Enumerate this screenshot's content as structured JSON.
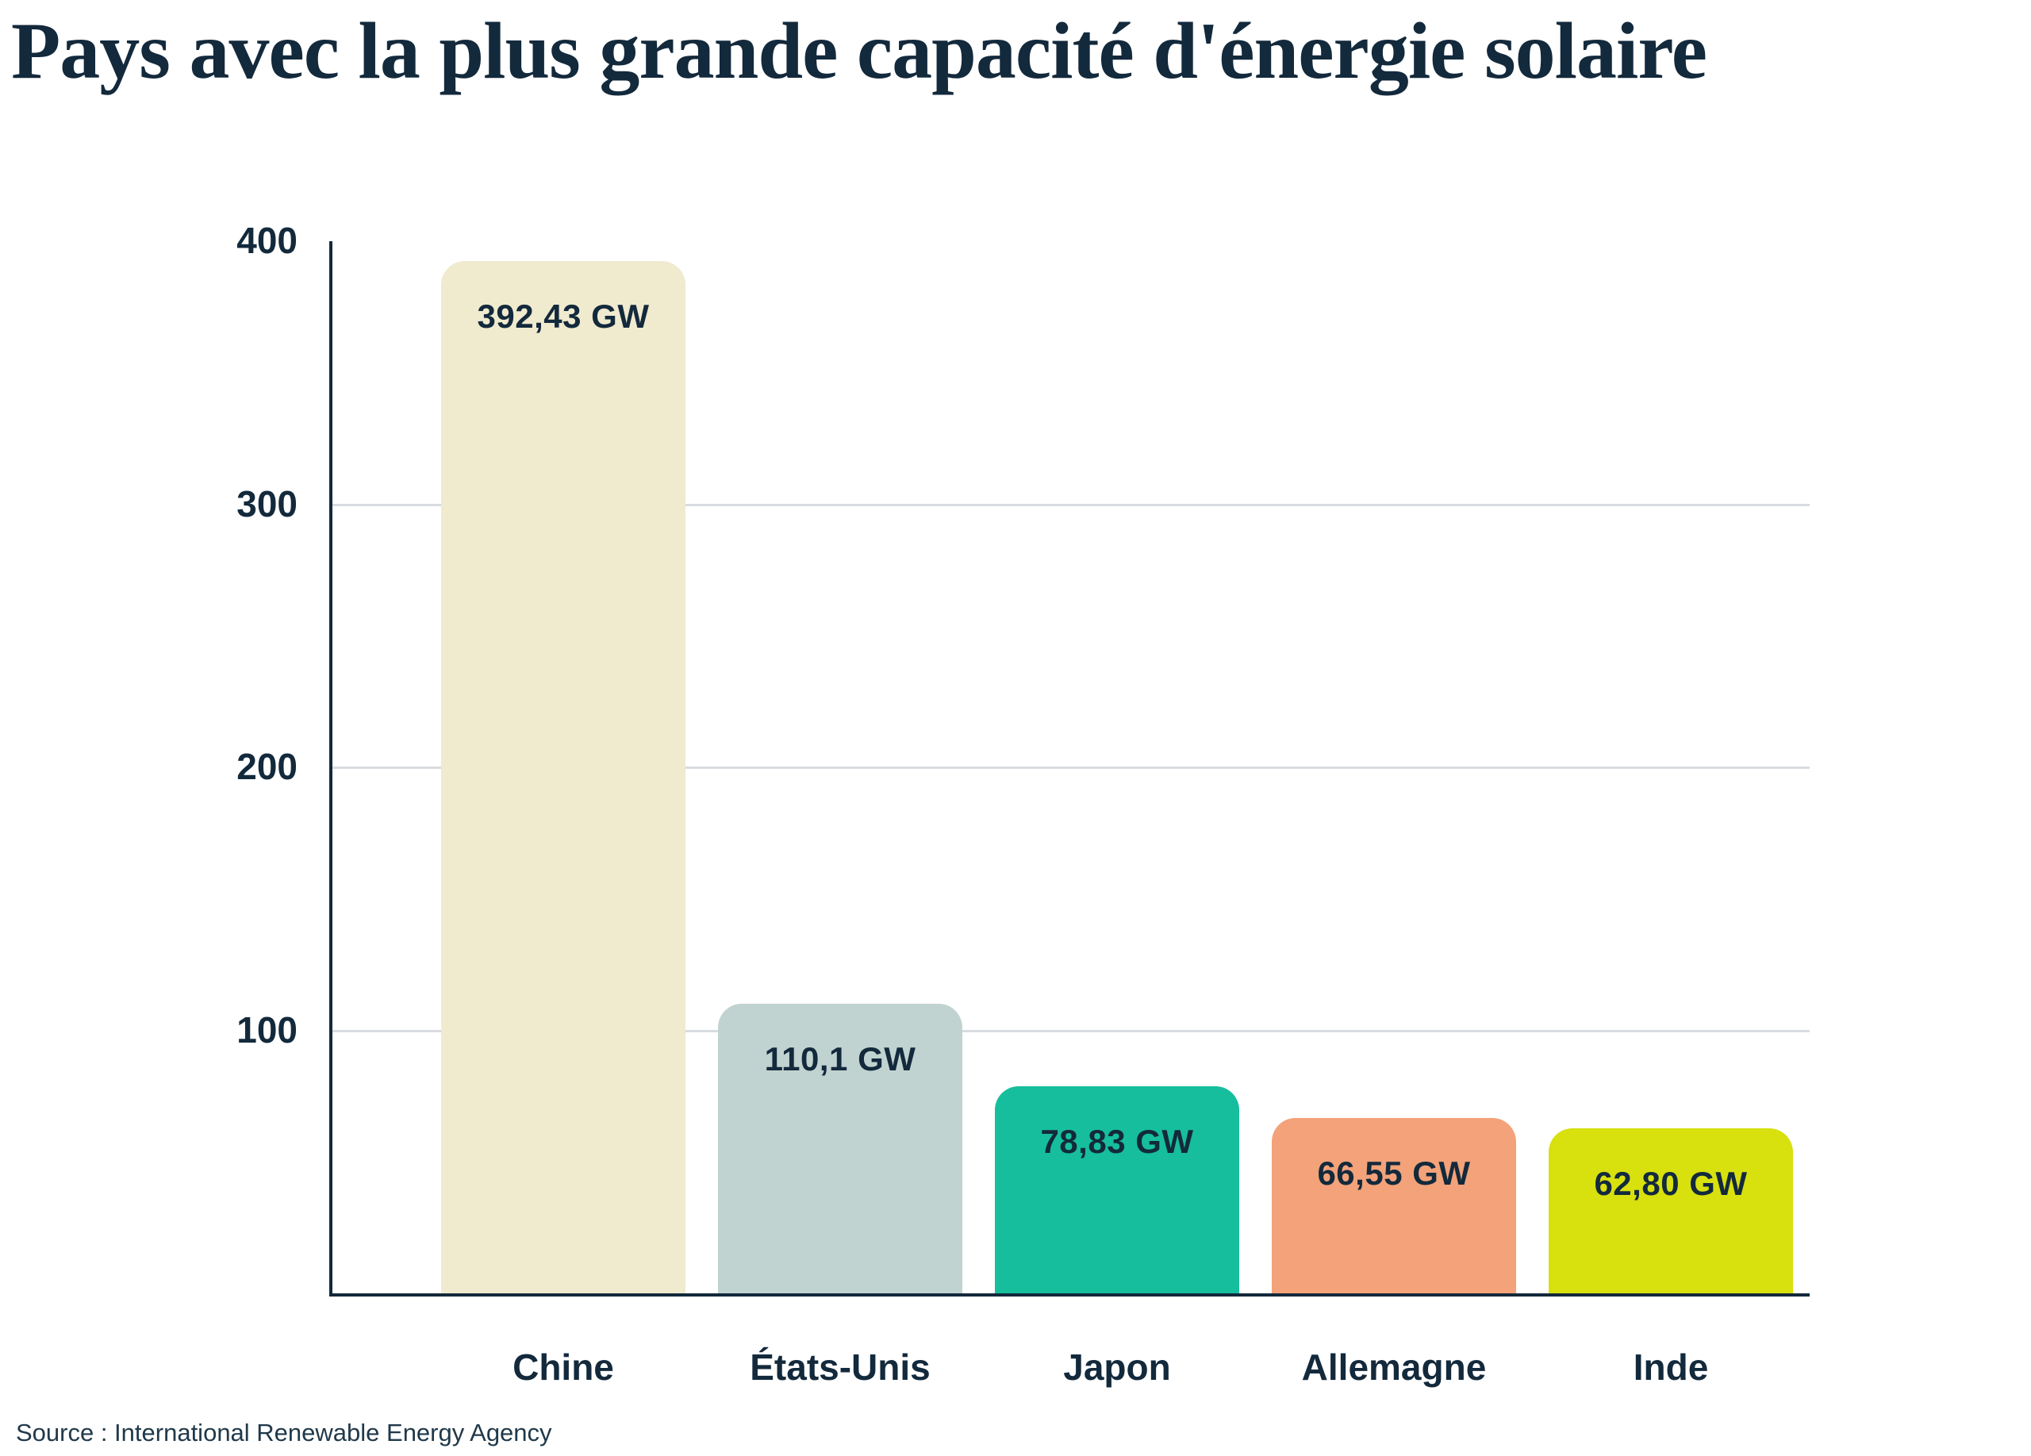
{
  "page": {
    "title": "Pays avec la plus grande capacité d'énergie solaire",
    "source": "Source : International Renewable Energy Agency"
  },
  "colors": {
    "background": "#FFFFFF",
    "title_text": "#13293C",
    "axis_line": "#13293C",
    "gridline": "#D8DCE0",
    "tick_text": "#13293C",
    "bar_label_text": "#13293C",
    "source_text": "#20394A"
  },
  "chart_data": {
    "type": "bar",
    "title": "Pays avec la plus grande capacité d'énergie solaire",
    "categories": [
      "Chine",
      "États-Unis",
      "Japon",
      "Allemagne",
      "Inde"
    ],
    "values": [
      392.43,
      110.1,
      78.83,
      66.55,
      62.8
    ],
    "value_labels": [
      "392,43 GW",
      "110,1 GW",
      "78,83 GW",
      "66,55 GW",
      "62,80 GW"
    ],
    "bar_colors": [
      "#F0EACF",
      "#C0D3D0",
      "#16BE9D",
      "#F3A279",
      "#D8E00E"
    ],
    "unit": "GW",
    "xlabel": "",
    "ylabel": "",
    "ylim": [
      0,
      400
    ],
    "yticks": [
      400,
      300,
      200,
      100
    ],
    "grid": "horizontal gridlines at 100, 200, 300 only",
    "legend": "none",
    "source": "Source : International Renewable Energy Agency"
  }
}
